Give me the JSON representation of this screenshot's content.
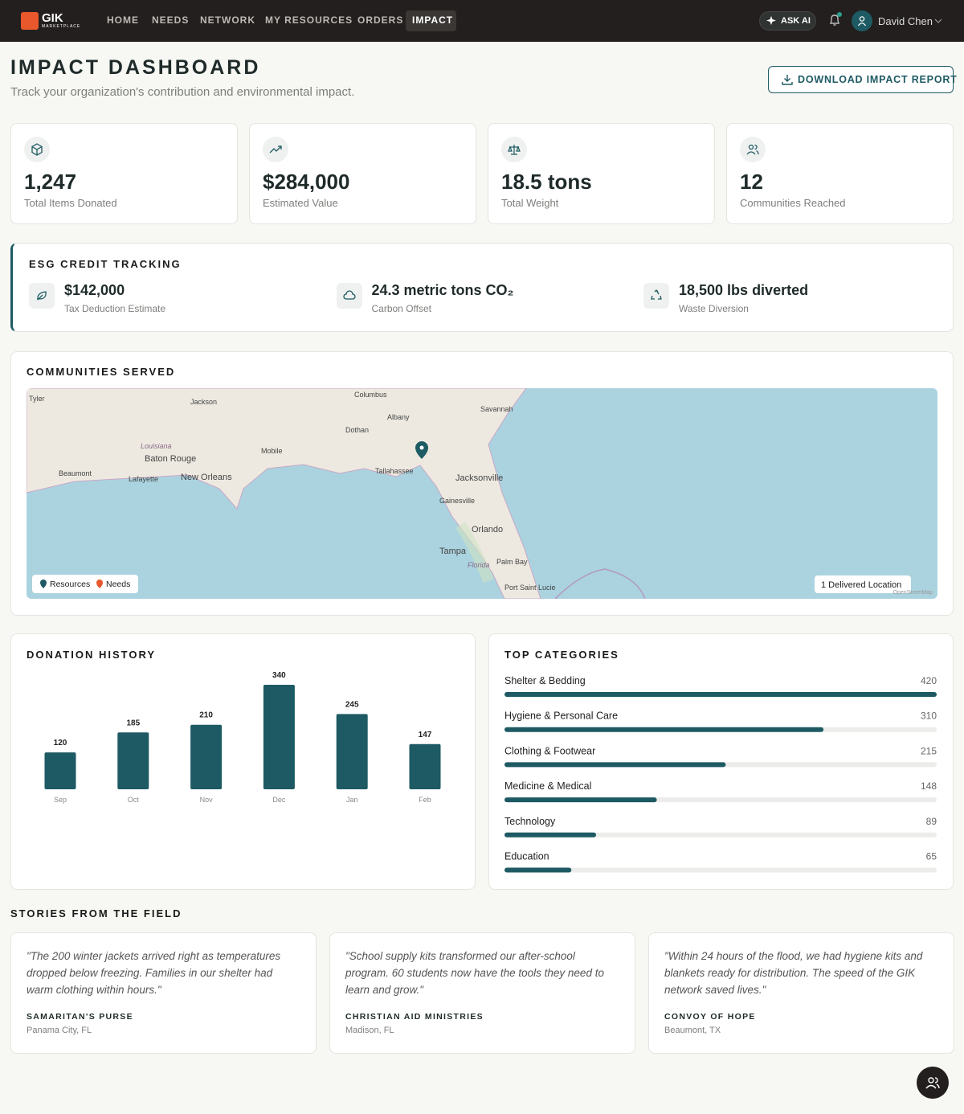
{
  "nav": {
    "logo": "GIK",
    "logo_sub": "MARKETPLACE",
    "links": [
      "HOME",
      "NEEDS",
      "NETWORK",
      "MY RESOURCES",
      "ORDERS",
      "IMPACT"
    ],
    "ask_ai": "ASK AI",
    "user": "David Chen"
  },
  "header": {
    "title": "IMPACT DASHBOARD",
    "subtitle": "Track your organization's contribution and environmental impact.",
    "button": "DOWNLOAD IMPACT REPORT"
  },
  "stats": [
    {
      "value": "1,247",
      "label": "Total Items Donated"
    },
    {
      "value": "$284,000",
      "label": "Estimated Value"
    },
    {
      "value": "18.5 tons",
      "label": "Total Weight"
    },
    {
      "value": "12",
      "label": "Communities Reached"
    }
  ],
  "esg": {
    "title": "ESG CREDIT TRACKING",
    "items": [
      {
        "value": "$142,000",
        "label": "Tax Deduction Estimate"
      },
      {
        "value": "24.3 metric tons CO₂",
        "label": "Carbon Offset"
      },
      {
        "value": "18,500 lbs diverted",
        "label": "Waste Diversion"
      }
    ]
  },
  "communities": {
    "title": "COMMUNITIES SERVED",
    "map_labels": [
      "Tyler",
      "Jackson",
      "Columbus",
      "Albany",
      "Savannah",
      "Dothan",
      "Louisiana",
      "Baton Rouge",
      "Mobile",
      "Tallahassee",
      "Jacksonville",
      "Beaumont",
      "Lafayette",
      "New Orleans",
      "Gainesville",
      "Orlando",
      "Tampa",
      "Florida",
      "Palm Bay",
      "Port Saint Lucie"
    ],
    "legend": [
      "Resources",
      "Needs"
    ],
    "status": "1 Delivered Location",
    "attribution": "OpenStreetMap"
  },
  "donation_history": {
    "title": "DONATION HISTORY",
    "categories": [
      "Sep",
      "Oct",
      "Nov",
      "Dec",
      "Jan",
      "Feb"
    ],
    "values": [
      120,
      185,
      210,
      340,
      245,
      147
    ]
  },
  "top_categories": {
    "title": "TOP CATEGORIES",
    "categories": [
      "Shelter & Bedding",
      "Hygiene & Personal Care",
      "Clothing & Footwear",
      "Medicine & Medical",
      "Technology",
      "Education"
    ],
    "values": [
      420,
      310,
      215,
      148,
      89,
      65
    ]
  },
  "stories": {
    "title": "STORIES FROM THE FIELD",
    "items": [
      {
        "quote": "\"The 200 winter jackets arrived right as temperatures dropped below freezing. Families in our shelter had warm clothing within hours.\"",
        "org": "SAMARITAN'S PURSE",
        "location": "Panama City, FL"
      },
      {
        "quote": "\"School supply kits transformed our after-school program. 60 students now have the tools they need to learn and grow.\"",
        "org": "CHRISTIAN AID MINISTRIES",
        "location": "Madison, FL"
      },
      {
        "quote": "\"Within 24 hours of the flood, we had hygiene kits and blankets ready for distribution. The speed of the GIK network saved lives.\"",
        "org": "CONVOY OF HOPE",
        "location": "Beaumont, TX"
      }
    ]
  }
}
